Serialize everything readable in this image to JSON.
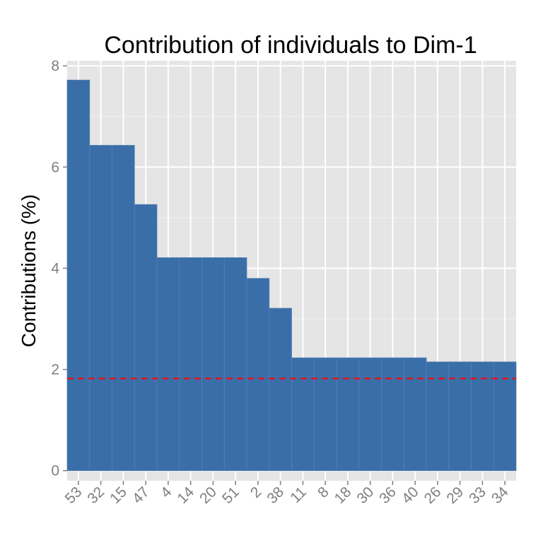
{
  "chart_data": {
    "type": "bar",
    "title": "Contribution of individuals to Dim-1",
    "xlabel": "",
    "ylabel": "Contributions (%)",
    "categories": [
      "53",
      "32",
      "15",
      "47",
      "4",
      "14",
      "20",
      "51",
      "2",
      "38",
      "11",
      "8",
      "18",
      "30",
      "36",
      "40",
      "26",
      "29",
      "33",
      "34"
    ],
    "values": [
      7.72,
      6.43,
      6.43,
      5.26,
      4.21,
      4.21,
      4.21,
      4.21,
      3.8,
      3.21,
      2.23,
      2.23,
      2.23,
      2.23,
      2.23,
      2.23,
      2.15,
      2.15,
      2.15,
      2.15
    ],
    "ylim": [
      -0.2,
      8.1
    ],
    "yticks": [
      0,
      2,
      4,
      6,
      8
    ],
    "reference_line": 1.82,
    "grid": true,
    "colors": {
      "bar": "#3a6ea8",
      "bar_edge": "#5580b3",
      "panel": "#e5e5e5",
      "grid_major": "#ffffff",
      "grid_minor": "#f2f2f2",
      "reference": "#e2141d"
    }
  }
}
